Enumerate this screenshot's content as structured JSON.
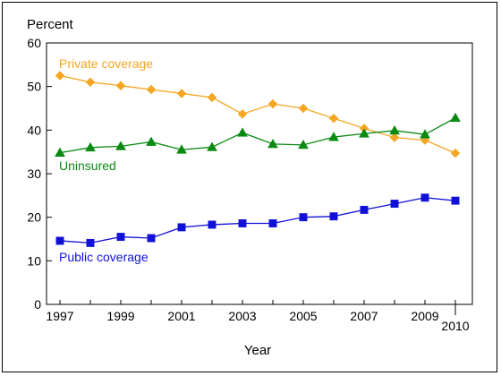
{
  "chart_data": {
    "type": "line",
    "title": "",
    "ylabel": "Percent",
    "xlabel": "Year",
    "ylim": [
      0,
      60
    ],
    "yticks": [
      0,
      10,
      20,
      30,
      40,
      50,
      60
    ],
    "x": [
      1997,
      1998,
      1999,
      2000,
      2001,
      2002,
      2003,
      2004,
      2005,
      2006,
      2007,
      2008,
      2009,
      2010
    ],
    "xtick_labels": [
      "1997",
      "1999",
      "2001",
      "2003",
      "2005",
      "2007",
      "2009",
      "2010"
    ],
    "series": [
      {
        "name": "Private coverage",
        "color": "#f5a623",
        "marker": "diamond",
        "values": [
          52.5,
          51.0,
          50.2,
          49.3,
          48.4,
          47.5,
          43.7,
          46.0,
          45.0,
          42.7,
          40.4,
          38.3,
          37.7,
          34.7
        ]
      },
      {
        "name": "Uninsured",
        "color": "#0b8a12",
        "marker": "triangle",
        "values": [
          34.8,
          36.0,
          36.3,
          37.3,
          35.5,
          36.1,
          39.4,
          36.8,
          36.6,
          38.4,
          39.2,
          39.9,
          39.0,
          42.8
        ]
      },
      {
        "name": "Public coverage",
        "color": "#1010d8",
        "marker": "square",
        "values": [
          14.6,
          14.1,
          15.5,
          15.2,
          17.7,
          18.3,
          18.6,
          18.6,
          20.0,
          20.2,
          21.7,
          23.1,
          24.5,
          23.8
        ]
      }
    ],
    "grid": false,
    "legend": "labels placed next to lines"
  }
}
